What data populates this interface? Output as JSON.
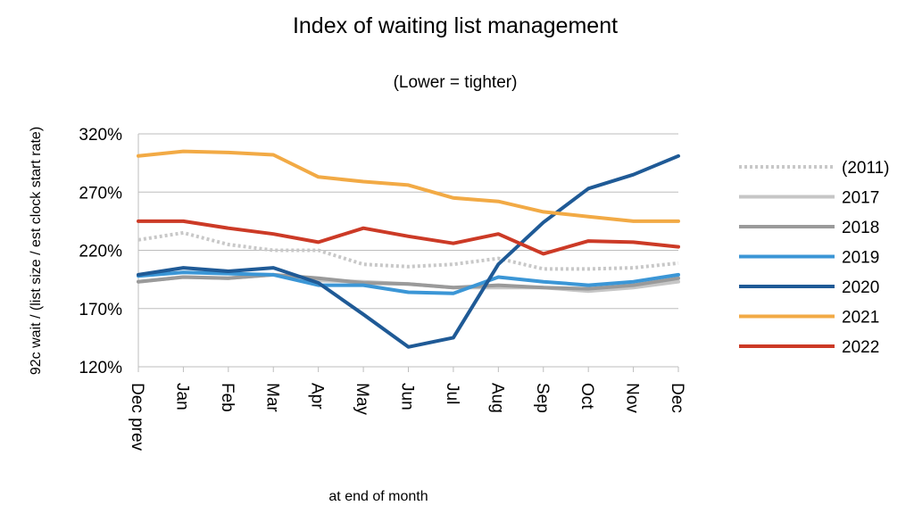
{
  "chart_data": {
    "type": "line",
    "title": "Index of waiting list management",
    "subtitle": "(Lower = tighter)",
    "xlabel": "at end of month",
    "ylabel": "92c wait / (list size / est clock start rate)",
    "categories": [
      "Dec prev",
      "Jan",
      "Feb",
      "Mar",
      "Apr",
      "May",
      "Jun",
      "Jul",
      "Aug",
      "Sep",
      "Oct",
      "Nov",
      "Dec"
    ],
    "yticks": [
      "120%",
      "170%",
      "220%",
      "270%",
      "320%"
    ],
    "ylim": [
      120,
      320
    ],
    "grid": "horizontal",
    "legend_position": "right",
    "series": [
      {
        "name": "(2011)",
        "color": "#c8c8c8",
        "style": "dotted",
        "values": [
          229,
          235,
          225,
          220,
          220,
          208,
          206,
          208,
          213,
          204,
          204,
          205,
          209
        ]
      },
      {
        "name": "2017",
        "color": "#c6c6c6",
        "style": "solid",
        "values": [
          193,
          197,
          196,
          199,
          194,
          193,
          191,
          188,
          188,
          188,
          185,
          188,
          193
        ]
      },
      {
        "name": "2018",
        "color": "#9a9a9a",
        "style": "solid",
        "values": [
          193,
          197,
          196,
          199,
          196,
          192,
          191,
          188,
          190,
          188,
          187,
          190,
          196
        ]
      },
      {
        "name": "2019",
        "color": "#3b96d6",
        "style": "solid",
        "values": [
          198,
          201,
          200,
          199,
          190,
          190,
          184,
          183,
          197,
          193,
          190,
          193,
          199
        ]
      },
      {
        "name": "2020",
        "color": "#1f5a96",
        "style": "solid",
        "values": [
          199,
          205,
          202,
          205,
          192,
          165,
          137,
          145,
          208,
          244,
          273,
          285,
          301
        ]
      },
      {
        "name": "2021",
        "color": "#f2aa45",
        "style": "solid",
        "values": [
          301,
          305,
          304,
          302,
          283,
          279,
          276,
          265,
          262,
          253,
          249,
          245,
          245
        ]
      },
      {
        "name": "2022",
        "color": "#cc3a26",
        "style": "solid",
        "values": [
          245,
          245,
          239,
          234,
          227,
          239,
          232,
          226,
          234,
          217,
          228,
          227,
          223
        ]
      }
    ]
  }
}
